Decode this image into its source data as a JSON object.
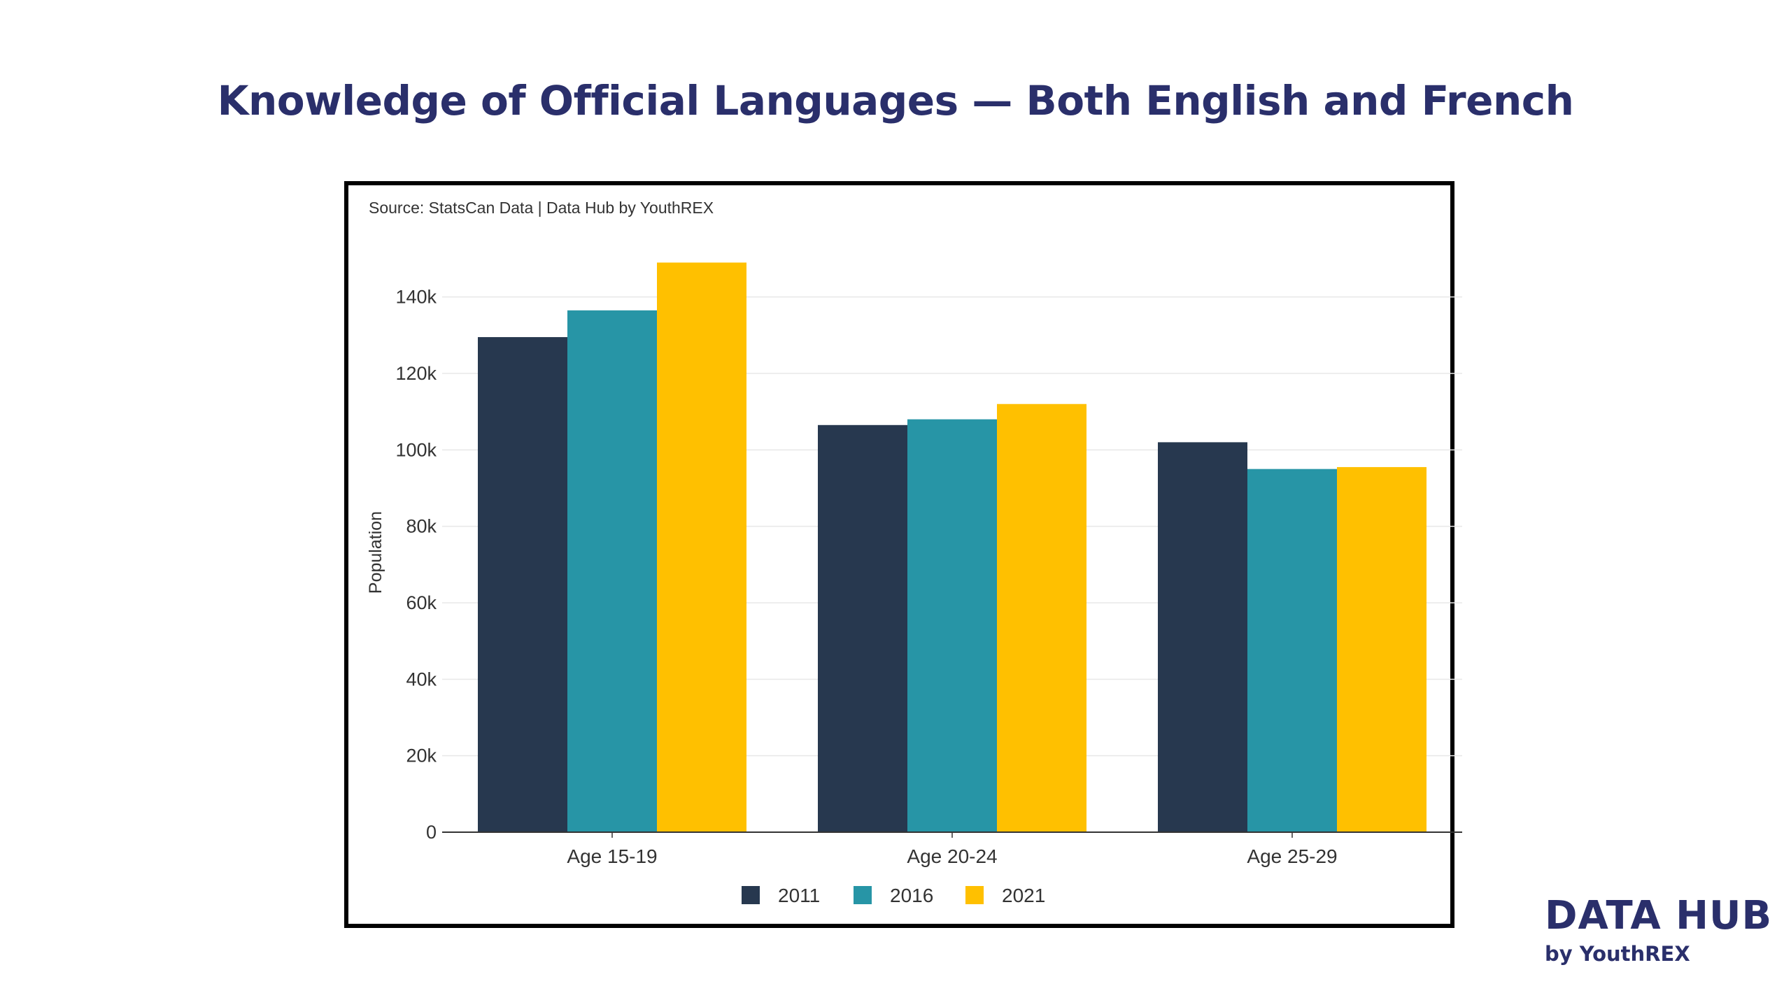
{
  "title": "Knowledge of Official Languages — Both English and French",
  "source_note": "Source: StatsCan Data | Data Hub by YouthREX",
  "brand": {
    "name": "DATA HUB",
    "sub": "by YouthREX"
  },
  "colors": {
    "title": "#2a2f6b",
    "grid": "#e8e8e8",
    "axis": "#333333"
  },
  "chart_data": {
    "type": "bar",
    "title": "",
    "xlabel": "",
    "ylabel": "Population",
    "ylim": [
      0,
      150000
    ],
    "yticks": [
      0,
      20000,
      40000,
      60000,
      80000,
      100000,
      120000,
      140000
    ],
    "ytick_labels": [
      "0",
      "20k",
      "40k",
      "60k",
      "80k",
      "100k",
      "120k",
      "140k"
    ],
    "categories": [
      "Age 15-19",
      "Age 20-24",
      "Age 25-29"
    ],
    "series": [
      {
        "name": "2011",
        "color": "#27384f",
        "values": [
          129500,
          106500,
          102000
        ]
      },
      {
        "name": "2016",
        "color": "#2795a6",
        "values": [
          136500,
          108000,
          95000
        ]
      },
      {
        "name": "2021",
        "color": "#ffc000",
        "values": [
          149000,
          112000,
          95500
        ]
      }
    ],
    "grid": true,
    "legend_position": "bottom-center"
  }
}
